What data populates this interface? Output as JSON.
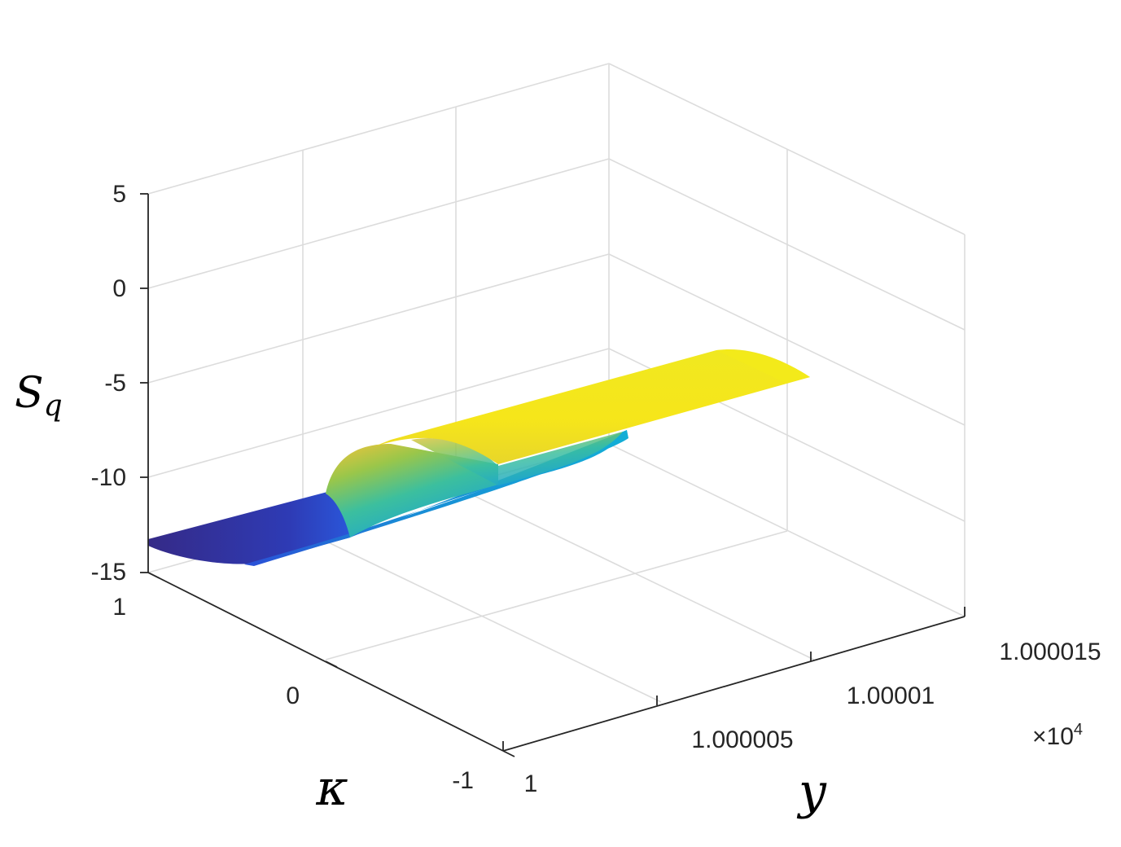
{
  "chart_data": {
    "type": "surface",
    "axes": {
      "z": {
        "label": "S",
        "label_subscript": "q",
        "ticks": [
          "5",
          "0",
          "-5",
          "-10",
          "-15"
        ],
        "range": [
          -15,
          5
        ]
      },
      "kappa": {
        "label": "κ",
        "ticks": [
          "1",
          "0",
          "-1"
        ],
        "range": [
          -1,
          1
        ]
      },
      "y": {
        "label": "y",
        "ticks": [
          "1",
          "1.000005",
          "1.00001",
          "1.000015"
        ],
        "multiplier": "×10",
        "multiplier_exp": "4",
        "range": [
          1,
          1.000015
        ]
      }
    },
    "grid": true,
    "colormap": [
      "#3e26a8",
      "#2f66f2",
      "#1ea8d6",
      "#45c9a0",
      "#a9c93c",
      "#f5d21e",
      "#f9fb0e"
    ],
    "surface": {
      "description_values": {
        "kappa_range": [
          -1,
          1
        ],
        "y_range": [
          1,
          1.000015
        ],
        "low_level": -13.5,
        "high_level": -1.5
      }
    }
  }
}
